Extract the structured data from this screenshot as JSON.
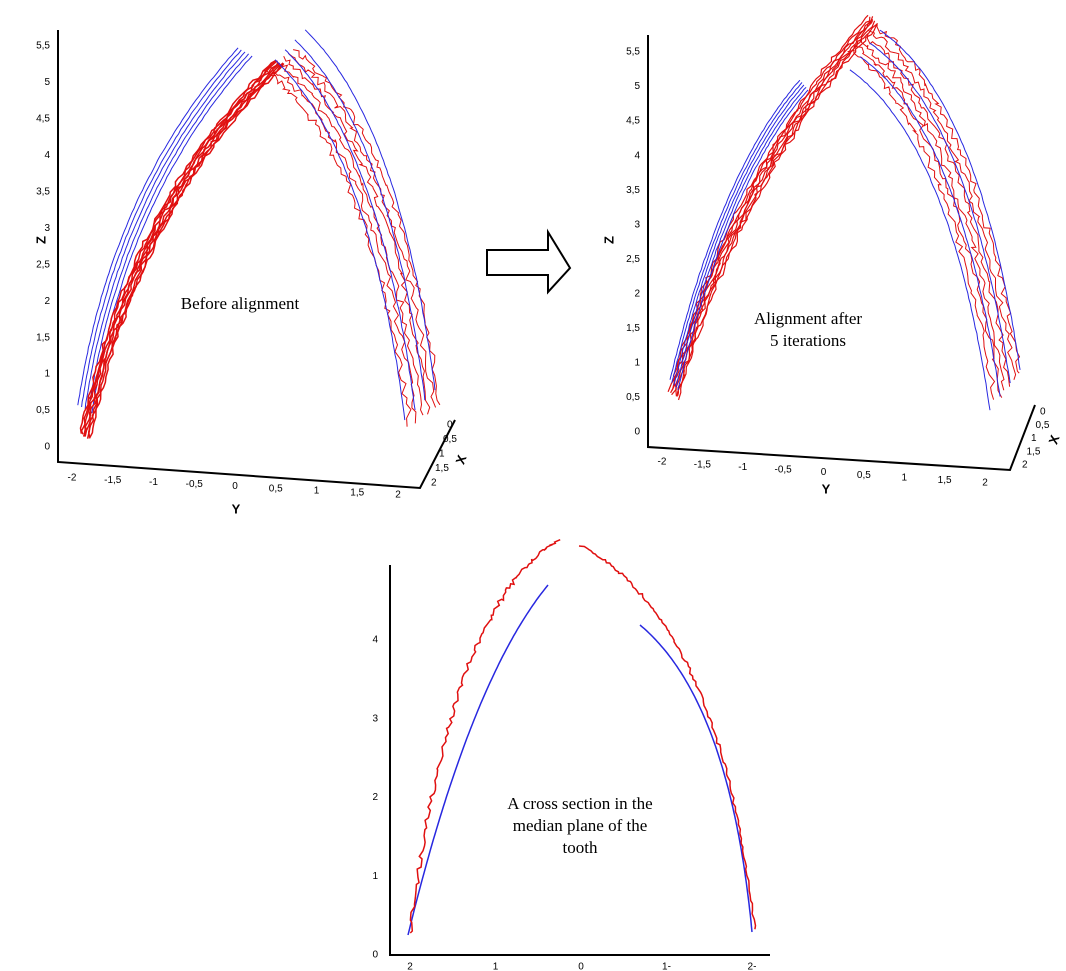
{
  "panels": [
    {
      "caption": [
        "Before alignment"
      ],
      "z_label": "Z",
      "y_label": "Y",
      "x_label": "X",
      "z_ticks": [
        "0",
        "0,5",
        "1",
        "1,5",
        "2",
        "2,5",
        "3",
        "3,5",
        "4",
        "4,5",
        "5",
        "5,5"
      ],
      "y_ticks": [
        "-2",
        "-1,5",
        "-1",
        "-0,5",
        "0",
        "0,5",
        "1",
        "1,5",
        "2"
      ],
      "x_ticks": [
        "0",
        "0,5",
        "1",
        "1,5",
        "2"
      ]
    },
    {
      "caption": [
        "Alignment after",
        "5 iterations"
      ],
      "z_label": "Z",
      "y_label": "Y",
      "x_label": "X",
      "z_ticks": [
        "0",
        "0,5",
        "1",
        "1,5",
        "2",
        "2,5",
        "3",
        "3,5",
        "4",
        "4,5",
        "5",
        "5,5"
      ],
      "y_ticks": [
        "-2",
        "-1,5",
        "-1",
        "-0,5",
        "0",
        "0,5",
        "1",
        "1,5",
        "2"
      ],
      "x_ticks": [
        "0",
        "0,5",
        "1",
        "1,5",
        "2"
      ]
    },
    {
      "caption": [
        "A cross section in the",
        "median plane of the",
        "tooth"
      ],
      "left_ticks": [
        "0",
        "1",
        "2",
        "3",
        "4"
      ],
      "bottom_ticks": [
        "2",
        "1",
        "0",
        "1-",
        "2-"
      ]
    }
  ]
}
